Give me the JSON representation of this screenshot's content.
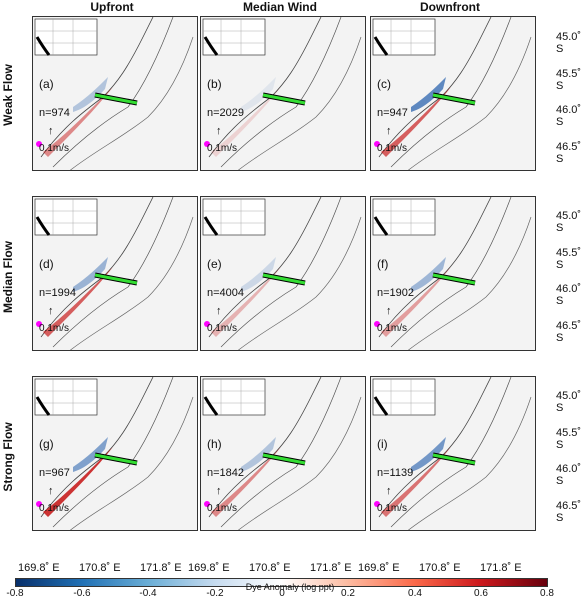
{
  "columns": [
    "Upfront",
    "Median Wind",
    "Downfront"
  ],
  "rows": [
    "Weak Flow",
    "Median Flow",
    "Strong Flow"
  ],
  "panels": [
    {
      "label": "(a)",
      "count": "n=974"
    },
    {
      "label": "(b)",
      "count": "n=2029"
    },
    {
      "label": "(c)",
      "count": "n=947"
    },
    {
      "label": "(d)",
      "count": "n=1994"
    },
    {
      "label": "(e)",
      "count": "n=4004"
    },
    {
      "label": "(f)",
      "count": "n=1902"
    },
    {
      "label": "(g)",
      "count": "n=967"
    },
    {
      "label": "(h)",
      "count": "n=1842"
    },
    {
      "label": "(i)",
      "count": "n=1139"
    }
  ],
  "scale_arrow": "0.1m/s",
  "lat_labels": [
    "45.0˚ S",
    "45.5˚ S",
    "46.0˚ S",
    "46.5˚ S"
  ],
  "lon_labels": [
    "169.8˚ E",
    "170.8˚ E",
    "171.8˚ E"
  ],
  "colorbar": {
    "ticks": [
      "-0.8",
      "-0.6",
      "-0.4",
      "-0.2",
      "0",
      "0.2",
      "0.4",
      "0.6",
      "0.8"
    ],
    "label": "Dye Anomaly (log ppt)"
  }
}
